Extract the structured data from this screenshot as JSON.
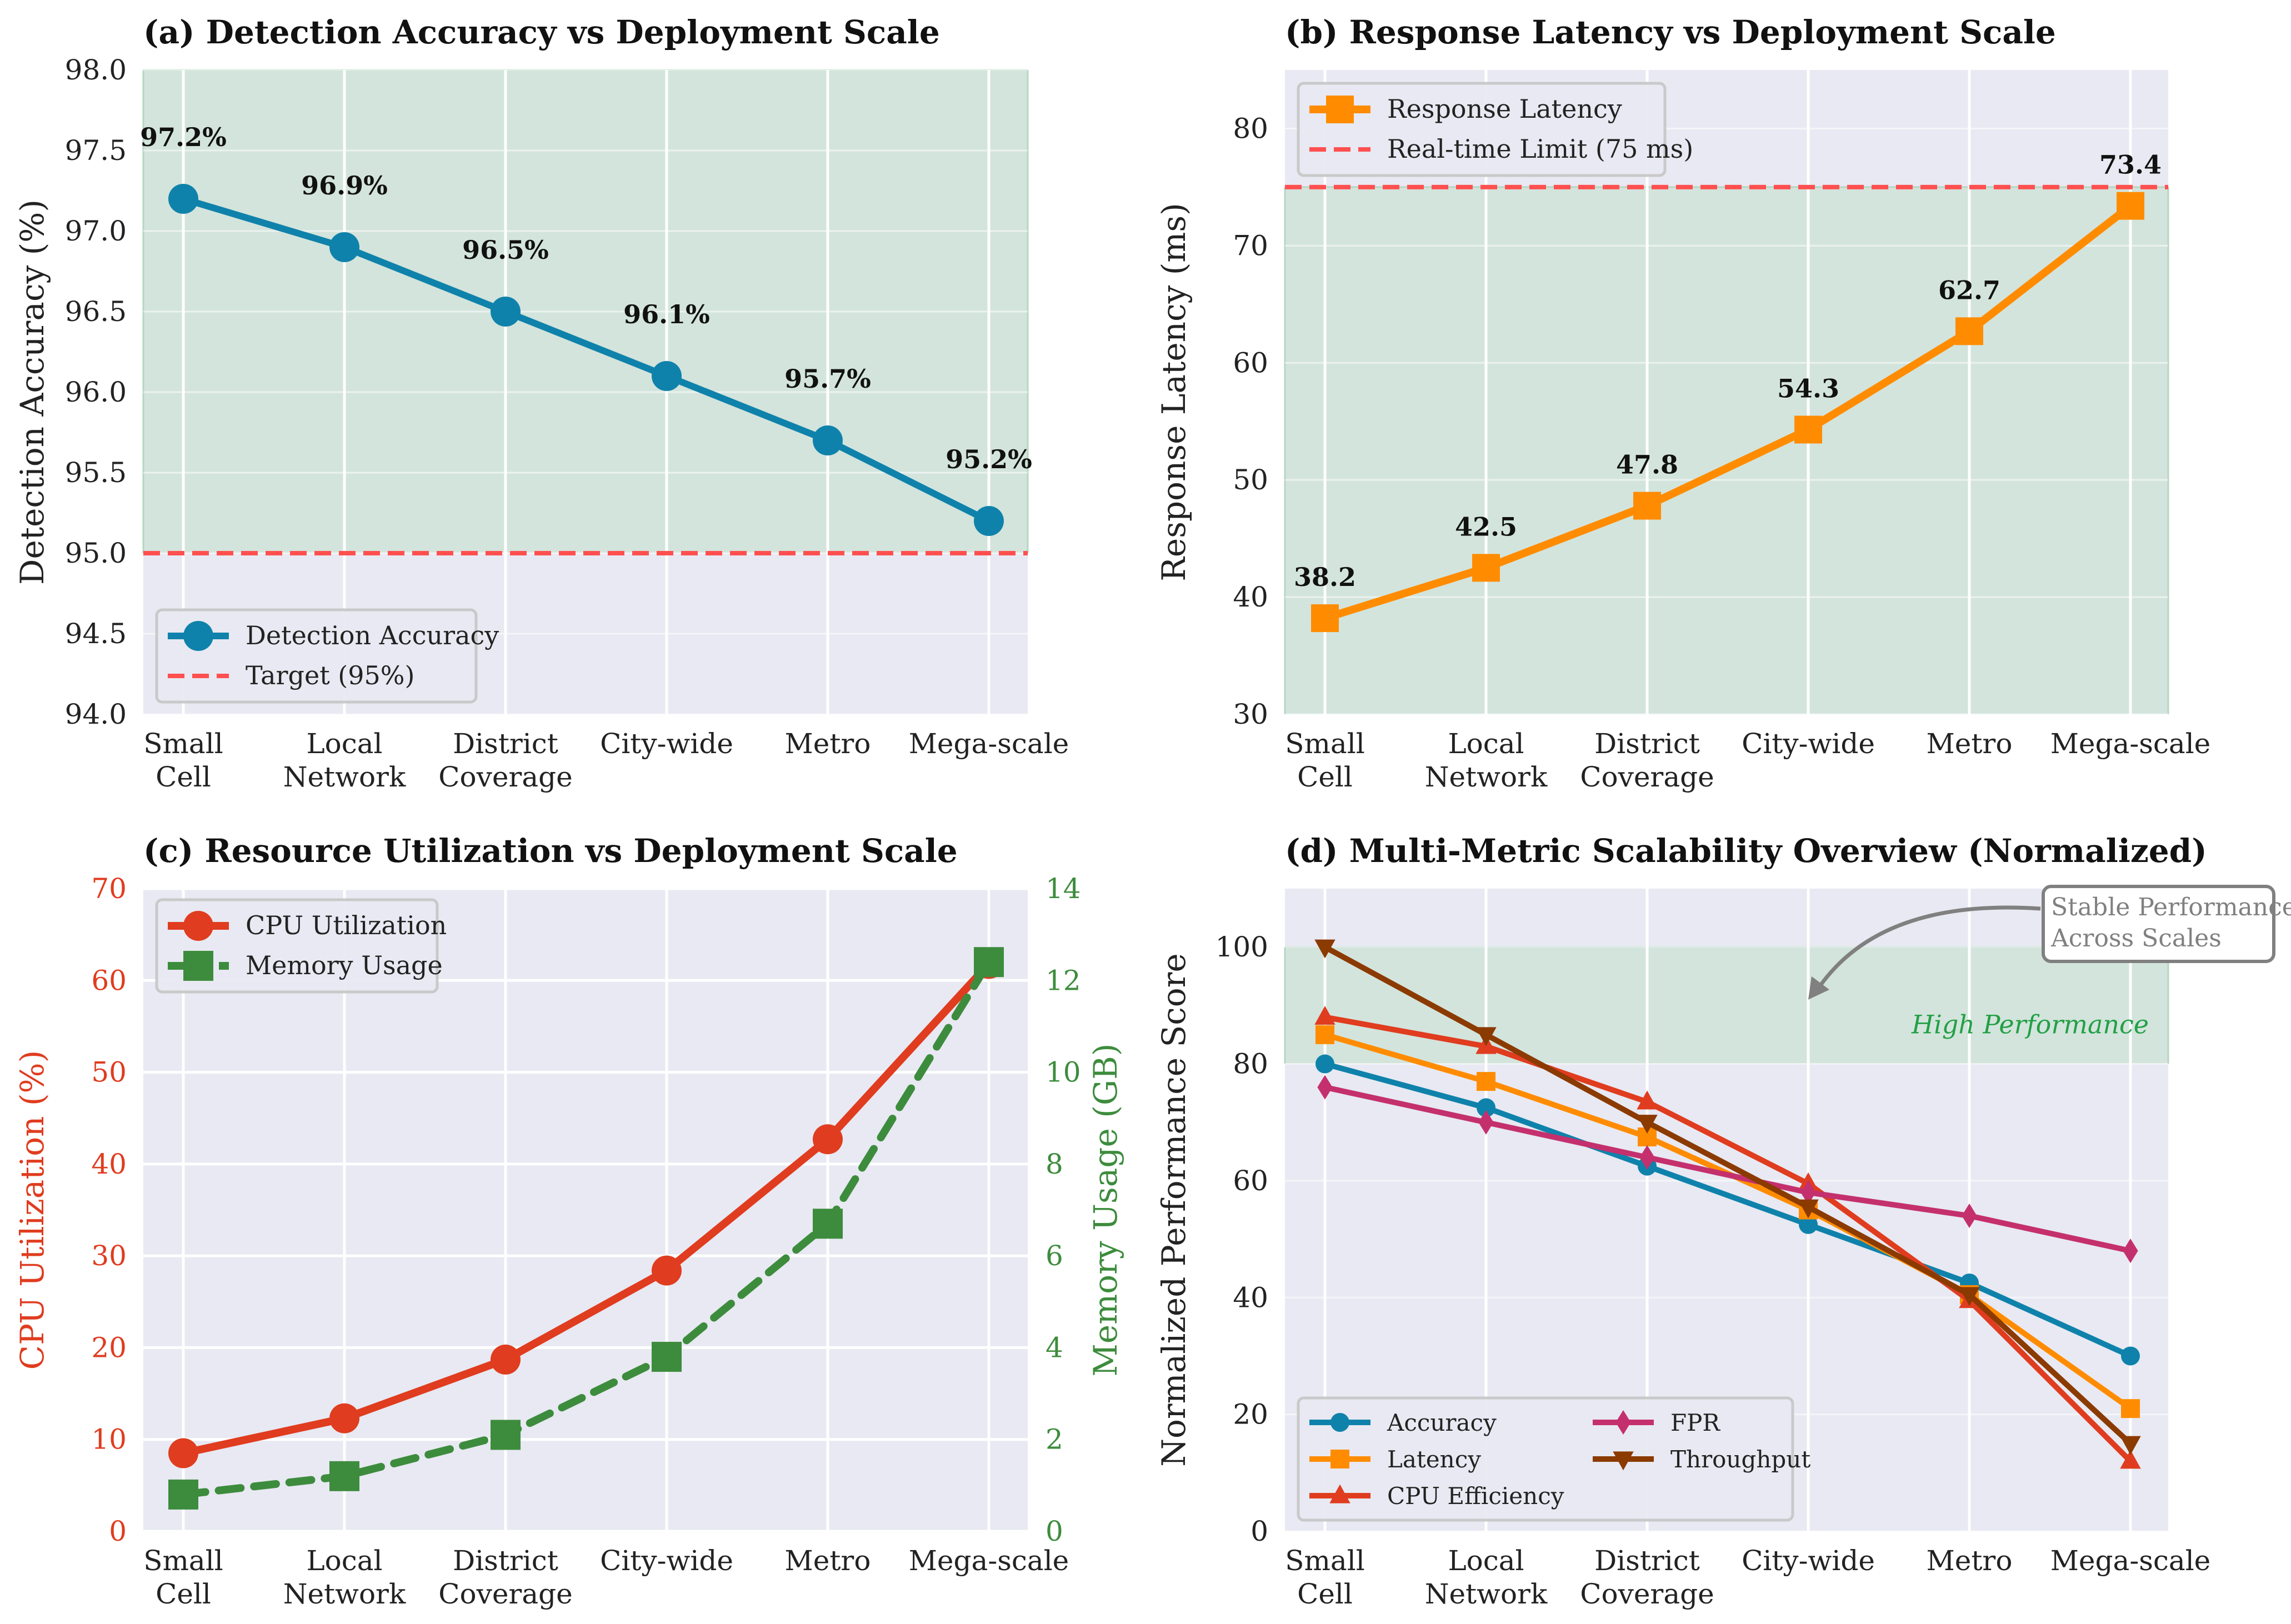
{
  "colors": {
    "bg": "#e8e9f2",
    "grid": "#ffffff",
    "accuracy": "#0f82ab",
    "latency": "#ff8c00",
    "cpu": "#e03c1f",
    "memory": "#3d8c3d",
    "target": "#ff4f4f",
    "shade": "#cfe3d8",
    "fpr": "#c4306d",
    "throughput": "#8b3a00",
    "highperf": "#22a045",
    "annot": "#808080"
  },
  "chart_data": [
    {
      "id": "a",
      "type": "line",
      "title": "(a) Detection Accuracy vs Deployment Scale",
      "xlabel": "",
      "ylabel": "Detection Accuracy (%)",
      "categories": [
        "Small\nCell",
        "Local\nNetwork",
        "District\nCoverage",
        "City-wide",
        "Metro",
        "Mega-scale"
      ],
      "ylim": [
        94.0,
        98.0
      ],
      "yticks": [
        94.0,
        94.5,
        95.0,
        95.5,
        96.0,
        96.5,
        97.0,
        97.5,
        98.0
      ],
      "ytick_labels": [
        "94.0",
        "94.5",
        "95.0",
        "95.5",
        "96.0",
        "96.5",
        "97.0",
        "97.5",
        "98.0"
      ],
      "grid": true,
      "shaded_band": [
        95.0,
        98.0
      ],
      "series": [
        {
          "name": "Detection Accuracy",
          "values": [
            97.2,
            96.9,
            96.5,
            96.1,
            95.7,
            95.2
          ],
          "marker": "circle",
          "color": "#0f82ab"
        }
      ],
      "data_labels": [
        "97.2%",
        "96.9%",
        "96.5%",
        "96.1%",
        "95.7%",
        "95.2%"
      ],
      "reference_line": {
        "name": "Target (95%)",
        "value": 95.0
      },
      "legend": {
        "position": "lower-left",
        "entries": [
          "Detection Accuracy",
          "Target (95%)"
        ]
      }
    },
    {
      "id": "b",
      "type": "line",
      "title": "(b) Response Latency vs Deployment Scale",
      "xlabel": "",
      "ylabel": "Response Latency (ms)",
      "categories": [
        "Small\nCell",
        "Local\nNetwork",
        "District\nCoverage",
        "City-wide",
        "Metro",
        "Mega-scale"
      ],
      "ylim": [
        30,
        85
      ],
      "yticks": [
        30,
        40,
        50,
        60,
        70,
        80
      ],
      "ytick_labels": [
        "30",
        "40",
        "50",
        "60",
        "70",
        "80"
      ],
      "grid": true,
      "shaded_band": [
        30,
        75
      ],
      "series": [
        {
          "name": "Response Latency",
          "values": [
            38.2,
            42.5,
            47.8,
            54.3,
            62.7,
            73.4
          ],
          "marker": "square",
          "color": "#ff8c00"
        }
      ],
      "data_labels": [
        "38.2",
        "42.5",
        "47.8",
        "54.3",
        "62.7",
        "73.4"
      ],
      "reference_line": {
        "name": "Real-time Limit (75 ms)",
        "value": 75
      },
      "legend": {
        "position": "top-left",
        "entries": [
          "Response Latency",
          "Real-time Limit (75 ms)"
        ]
      }
    },
    {
      "id": "c",
      "type": "line",
      "title": "(c) Resource Utilization vs Deployment Scale",
      "xlabel": "",
      "ylabel": "CPU Utilization (%)",
      "ylabel_right": "Memory Usage (GB)",
      "categories": [
        "Small\nCell",
        "Local\nNetwork",
        "District\nCoverage",
        "City-wide",
        "Metro",
        "Mega-scale"
      ],
      "ylim": [
        0,
        70
      ],
      "ylim_right": [
        0,
        14
      ],
      "yticks": [
        0,
        10,
        20,
        30,
        40,
        50,
        60,
        70
      ],
      "ytick_labels": [
        "0",
        "10",
        "20",
        "30",
        "40",
        "50",
        "60",
        "70"
      ],
      "yticks_right": [
        0,
        2,
        4,
        6,
        8,
        10,
        12,
        14
      ],
      "ytick_labels_right": [
        "0",
        "2",
        "4",
        "6",
        "8",
        "10",
        "12",
        "14"
      ],
      "grid": true,
      "series": [
        {
          "name": "CPU Utilization",
          "values": [
            8.5,
            12.3,
            18.7,
            28.4,
            42.7,
            61.8
          ],
          "marker": "circle",
          "color": "#e03c1f",
          "axis": "left"
        },
        {
          "name": "Memory Usage",
          "values": [
            0.8,
            1.2,
            2.1,
            3.8,
            6.7,
            12.4
          ],
          "marker": "square",
          "color": "#3d8c3d",
          "axis": "right",
          "dashed": true
        }
      ],
      "legend": {
        "position": "top-left",
        "entries": [
          "CPU Utilization",
          "Memory Usage"
        ]
      }
    },
    {
      "id": "d",
      "type": "line",
      "title": "(d) Multi-Metric Scalability Overview (Normalized)",
      "xlabel": "",
      "ylabel": "Normalized Performance Score",
      "categories": [
        "Small\nCell",
        "Local\nNetwork",
        "District\nCoverage",
        "City-wide",
        "Metro",
        "Mega-scale"
      ],
      "ylim": [
        0,
        110
      ],
      "yticks": [
        0,
        20,
        40,
        60,
        80,
        100
      ],
      "ytick_labels": [
        "0",
        "20",
        "40",
        "60",
        "80",
        "100"
      ],
      "grid": true,
      "shaded_band": [
        80,
        100
      ],
      "band_label": "High Performance",
      "annotation": {
        "text": [
          "Stable Performance",
          "Across Scales"
        ],
        "arrow_to": {
          "category_index": 3,
          "value": 91
        }
      },
      "series": [
        {
          "name": "Accuracy",
          "values": [
            80,
            72.5,
            62.5,
            52.5,
            42.5,
            30
          ],
          "marker": "circle",
          "color": "#0f82ab"
        },
        {
          "name": "Latency",
          "values": [
            85,
            77,
            67.5,
            55,
            40.5,
            21
          ],
          "marker": "square",
          "color": "#ff8c00"
        },
        {
          "name": "CPU Efficiency",
          "values": [
            88,
            83,
            73.5,
            59.5,
            39.5,
            12
          ],
          "marker": "triangle-up",
          "color": "#e03c1f"
        },
        {
          "name": "FPR",
          "values": [
            76,
            70,
            64,
            58,
            54,
            48
          ],
          "marker": "diamond",
          "color": "#c4306d"
        },
        {
          "name": "Throughput",
          "values": [
            100,
            85,
            70,
            55.5,
            40.5,
            15
          ],
          "marker": "triangle-down",
          "color": "#8b3a00"
        }
      ],
      "legend": {
        "position": "lower-left",
        "columns": 2,
        "entries": [
          "Accuracy",
          "Latency",
          "CPU Efficiency",
          "FPR",
          "Throughput"
        ]
      }
    }
  ]
}
